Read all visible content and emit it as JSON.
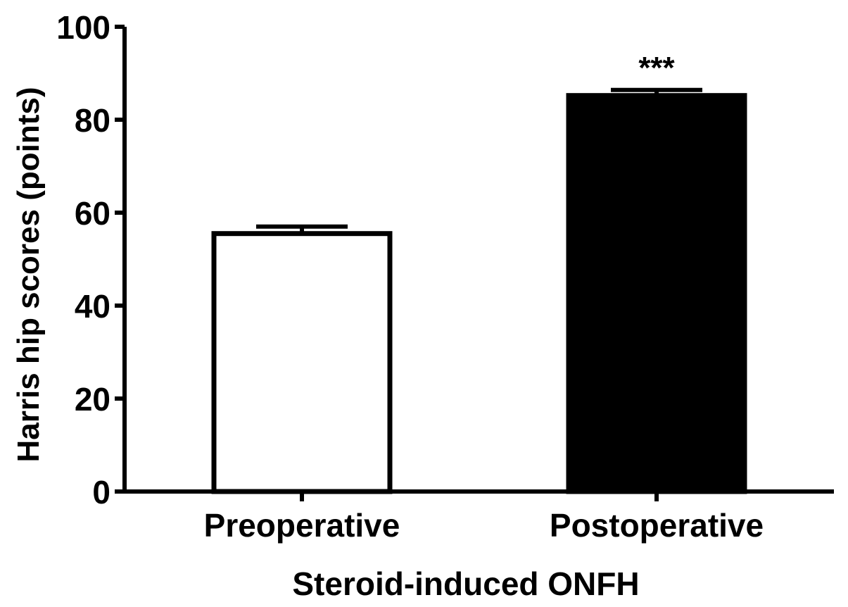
{
  "chart_data": {
    "type": "bar",
    "title": "",
    "xlabel": "Steroid-induced ONFH",
    "ylabel": "Harris hip scores (points)",
    "ylim": [
      0,
      100
    ],
    "yticks": [
      0,
      20,
      40,
      60,
      80,
      100
    ],
    "grid": false,
    "categories": [
      "Preoperative",
      "Postoperative"
    ],
    "series": [
      {
        "values": [
          55.5,
          85.2
        ],
        "error": [
          1.5,
          1.2
        ],
        "fill_colors": [
          "#ffffff",
          "#000000"
        ],
        "annotations": [
          "",
          "***"
        ]
      }
    ]
  }
}
